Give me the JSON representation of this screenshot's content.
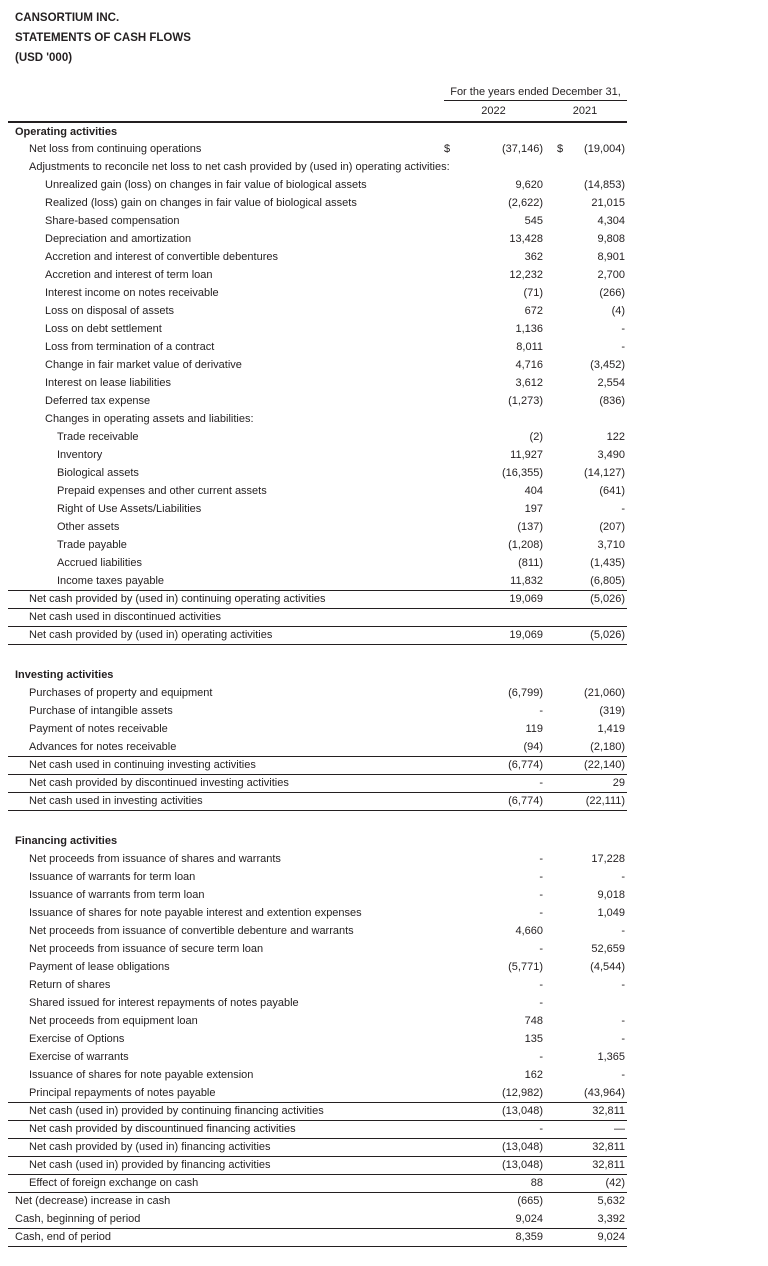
{
  "document": {
    "title": "CANSORTIUM INC.",
    "subtitle": "STATEMENTS OF CASH FLOWS",
    "unit": "(USD '000)"
  },
  "table": {
    "period_header": "For the years ended December 31,",
    "col_2022": "2022",
    "col_2021": "2021",
    "rows": [
      {
        "label": "Operating activities",
        "indent": 0,
        "bold": true
      },
      {
        "label": "Net loss from continuing operations",
        "indent": 1,
        "cur1": "$",
        "v1": "(37,146)",
        "cur2": "$",
        "v2": "(19,004)"
      },
      {
        "label": "Adjustments to reconcile net loss to net cash provided by (used in) operating activities:",
        "indent": 1
      },
      {
        "label": "Unrealized gain (loss) on changes in fair value of biological assets",
        "indent": 2,
        "v1": "9,620",
        "v2": "(14,853)"
      },
      {
        "label": "Realized (loss) gain on changes in fair value of biological assets",
        "indent": 2,
        "v1": "(2,622)",
        "v2": "21,015"
      },
      {
        "label": "Share-based compensation",
        "indent": 2,
        "v1": "545",
        "v2": "4,304"
      },
      {
        "label": "Depreciation and amortization",
        "indent": 2,
        "v1": "13,428",
        "v2": "9,808"
      },
      {
        "label": "Accretion and interest of convertible debentures",
        "indent": 2,
        "v1": "362",
        "v2": "8,901"
      },
      {
        "label": "Accretion and interest of term loan",
        "indent": 2,
        "v1": "12,232",
        "v2": "2,700"
      },
      {
        "label": "Interest income on notes receivable",
        "indent": 2,
        "v1": "(71)",
        "v2": "(266)"
      },
      {
        "label": "Loss on disposal of assets",
        "indent": 2,
        "v1": "672",
        "v2": "(4)"
      },
      {
        "label": "Loss on debt settlement",
        "indent": 2,
        "v1": "1,136",
        "v2": "-"
      },
      {
        "label": "Loss from termination of a contract",
        "indent": 2,
        "v1": "8,011",
        "v2": "-"
      },
      {
        "label": "Change in fair market value of derivative",
        "indent": 2,
        "v1": "4,716",
        "v2": "(3,452)"
      },
      {
        "label": "Interest on lease liabilities",
        "indent": 2,
        "v1": "3,612",
        "v2": "2,554"
      },
      {
        "label": "Deferred tax expense",
        "indent": 2,
        "v1": "(1,273)",
        "v2": "(836)"
      },
      {
        "label": "Changes in operating assets and liabilities:",
        "indent": 2
      },
      {
        "label": "Trade receivable",
        "indent": 3,
        "v1": "(2)",
        "v2": "122"
      },
      {
        "label": "Inventory",
        "indent": 3,
        "v1": "11,927",
        "v2": "3,490"
      },
      {
        "label": "Biological assets",
        "indent": 3,
        "v1": "(16,355)",
        "v2": "(14,127)"
      },
      {
        "label": "Prepaid expenses and other current assets",
        "indent": 3,
        "v1": "404",
        "v2": "(641)"
      },
      {
        "label": "Right of Use Assets/Liabilities",
        "indent": 3,
        "v1": "197",
        "v2": "-"
      },
      {
        "label": "Other assets",
        "indent": 3,
        "v1": "(137)",
        "v2": "(207)"
      },
      {
        "label": "Trade payable",
        "indent": 3,
        "v1": "(1,208)",
        "v2": "3,710"
      },
      {
        "label": "Accrued liabilities",
        "indent": 3,
        "v1": "(811)",
        "v2": "(1,435)"
      },
      {
        "label": "Income taxes payable",
        "indent": 3,
        "v1": "11,832",
        "v2": "(6,805)",
        "rule": true
      },
      {
        "label": "Net cash provided by (used in) continuing operating activities",
        "indent": 1,
        "v1": "19,069",
        "v2": "(5,026)",
        "rule": true
      },
      {
        "label": "Net cash used in discontinued activities",
        "indent": 1,
        "rule": true
      },
      {
        "label": "Net cash provided by (used in) operating activities",
        "indent": 1,
        "v1": "19,069",
        "v2": "(5,026)",
        "rule": true
      },
      {
        "spacer": true
      },
      {
        "label": "Investing activities",
        "indent": 0,
        "bold": true
      },
      {
        "label": "Purchases of property and equipment",
        "indent": 1,
        "v1": "(6,799)",
        "v2": "(21,060)"
      },
      {
        "label": "Purchase of intangible assets",
        "indent": 1,
        "v1": "-",
        "v2": "(319)"
      },
      {
        "label": "Payment of notes receivable",
        "indent": 1,
        "v1": "119",
        "v2": "1,419"
      },
      {
        "label": "Advances for notes receivable",
        "indent": 1,
        "v1": "(94)",
        "v2": "(2,180)",
        "rule": true
      },
      {
        "label": "Net cash used in continuing investing activities",
        "indent": 1,
        "v1": "(6,774)",
        "v2": "(22,140)",
        "rule": true
      },
      {
        "label": "Net cash provided by discontinued investing activities",
        "indent": 1,
        "v1": "-",
        "v2": "29",
        "rule": true
      },
      {
        "label": "Net cash used in investing activities",
        "indent": 1,
        "v1": "(6,774)",
        "v2": "(22,111)",
        "rule": true
      },
      {
        "spacer": true
      },
      {
        "label": "Financing activities",
        "indent": 0,
        "bold": true
      },
      {
        "label": "Net proceeds from issuance of shares and warrants",
        "indent": 1,
        "v1": "-",
        "v2": "17,228"
      },
      {
        "label": "Issuance of warrants for term loan",
        "indent": 1,
        "v1": "-",
        "v2": "-"
      },
      {
        "label": "Issuance of warrants from term loan",
        "indent": 1,
        "v1": "-",
        "v2": "9,018"
      },
      {
        "label": "Issuance of shares for note payable interest and extention expenses",
        "indent": 1,
        "v1": "-",
        "v2": "1,049"
      },
      {
        "label": "Net proceeds from issuance of convertible debenture and warrants",
        "indent": 1,
        "v1": "4,660",
        "v2": "-"
      },
      {
        "label": "Net proceeds from issuance of secure term loan",
        "indent": 1,
        "v1": "-",
        "v2": "52,659"
      },
      {
        "label": "Payment of lease obligations",
        "indent": 1,
        "v1": "(5,771)",
        "v2": "(4,544)"
      },
      {
        "label": "Return of shares",
        "indent": 1,
        "v1": "-",
        "v2": "-"
      },
      {
        "label": "Shared issued for interest repayments of notes payable",
        "indent": 1,
        "v1": "-"
      },
      {
        "label": "Net proceeds from equipment loan",
        "indent": 1,
        "v1": "748",
        "v2": "-"
      },
      {
        "label": "Exercise of Options",
        "indent": 1,
        "v1": "135",
        "v2": "-"
      },
      {
        "label": "Exercise of warrants",
        "indent": 1,
        "v1": "-",
        "v2": "1,365"
      },
      {
        "label": "Issuance of shares for note payable extension",
        "indent": 1,
        "v1": "162",
        "v2": "-"
      },
      {
        "label": "Principal repayments of notes payable",
        "indent": 1,
        "v1": "(12,982)",
        "v2": "(43,964)",
        "rule": true
      },
      {
        "label": "Net cash (used in) provided by continuing financing activities",
        "indent": 1,
        "v1": "(13,048)",
        "v2": "32,811",
        "rule": true
      },
      {
        "label": "Net cash provided by discountinued financing activities",
        "indent": 1,
        "v1": "-",
        "v2": "—",
        "rule": true
      },
      {
        "label": "Net cash provided by (used in) financing activities",
        "indent": 1,
        "v1": "(13,048)",
        "v2": "32,811",
        "rule": true
      },
      {
        "label": "Net cash (used in) provided by financing activities",
        "indent": 1,
        "v1": "(13,048)",
        "v2": "32,811",
        "rule": true
      },
      {
        "label": "Effect of foreign exchange on cash",
        "indent": 1,
        "v1": "88",
        "v2": "(42)",
        "rule": true
      },
      {
        "label": "Net (decrease) increase in cash",
        "indent": 0,
        "v1": "(665)",
        "v2": "5,632"
      },
      {
        "label": "Cash, beginning of period",
        "indent": 0,
        "v1": "9,024",
        "v2": "3,392",
        "rule": true
      },
      {
        "label": "Cash, end of period",
        "indent": 0,
        "v1": "8,359",
        "v2": "9,024",
        "rule": true
      }
    ]
  }
}
